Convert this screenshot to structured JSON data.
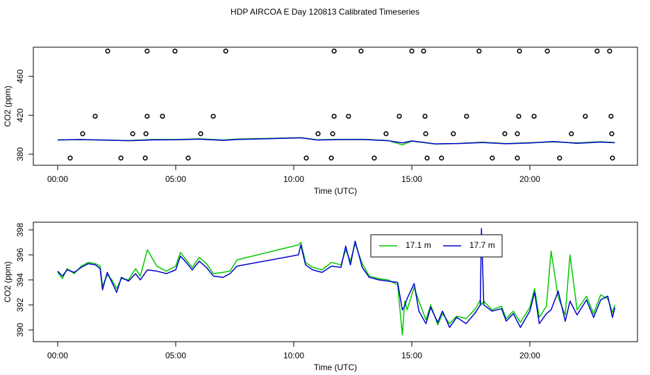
{
  "title": "HDP AIRCOA E  Day 120813  Calibrated Timeseries",
  "chart_data": [
    {
      "type": "line",
      "x_label": "Time (UTC)",
      "y_label": "CO2 (ppm)",
      "xlim": [
        -1.03,
        24.56
      ],
      "ylim": [
        368.6,
        490
      ],
      "xticks": [
        {
          "value": 0,
          "label": "00:00"
        },
        {
          "value": 5,
          "label": "05:00"
        },
        {
          "value": 10,
          "label": "10:00"
        },
        {
          "value": 15,
          "label": "15:00"
        },
        {
          "value": 20,
          "label": "20:00"
        }
      ],
      "yticks": [
        380,
        420,
        460
      ],
      "x": [
        0,
        1,
        2,
        3,
        4,
        5,
        6,
        7,
        7.6,
        10.3,
        11,
        12,
        13,
        14,
        14.6,
        15,
        16,
        17,
        18,
        19,
        20,
        21,
        22,
        23,
        23.6
      ],
      "series": [
        {
          "color": "#00c800",
          "values": [
            394.6,
            395.1,
            394.4,
            394.0,
            395.1,
            395.1,
            395.8,
            394.6,
            395.6,
            397.0,
            394.8,
            395.2,
            395.3,
            394.0,
            389.6,
            393.4,
            390.4,
            391.1,
            392.3,
            390.9,
            391.8,
            392.6,
            391.6,
            392.8,
            392.0
          ]
        },
        {
          "color": "#0000cd",
          "values": [
            394.7,
            395.0,
            394.6,
            393.9,
            394.7,
            394.8,
            395.5,
            394.2,
            395.1,
            396.8,
            394.6,
            395.0,
            395.0,
            393.9,
            391.6,
            393.7,
            390.6,
            391.0,
            392.0,
            390.7,
            391.5,
            393.1,
            391.2,
            392.4,
            391.8
          ]
        }
      ],
      "points": {
        "color": "#000000",
        "x": [
          2.12,
          3.79,
          4.97,
          7.12,
          11.71,
          12.85,
          15.0,
          15.5,
          17.85,
          19.56,
          20.74,
          22.85,
          23.38,
          1.59,
          3.79,
          4.44,
          6.59,
          11.71,
          12.32,
          14.47,
          15.56,
          17.32,
          19.53,
          20.18,
          22.35,
          23.44,
          1.06,
          3.18,
          3.74,
          6.06,
          11.03,
          11.65,
          13.91,
          15.59,
          16.76,
          18.94,
          19.47,
          21.76,
          23.47,
          0.53,
          2.68,
          3.71,
          5.53,
          10.53,
          11.59,
          13.41,
          15.65,
          16.26,
          18.41,
          19.47,
          21.26,
          23.5
        ],
        "y": [
          486,
          486,
          486,
          486,
          486,
          486,
          486,
          486,
          486,
          486,
          486,
          486,
          486,
          419,
          419,
          419,
          419,
          419,
          419,
          419,
          419,
          419,
          419,
          419,
          419,
          419,
          401,
          401,
          401,
          401,
          401,
          401,
          401,
          401,
          401,
          401,
          401,
          401,
          401,
          376,
          376,
          376,
          376,
          376,
          376,
          376,
          376,
          376,
          376,
          376,
          376,
          376
        ]
      }
    },
    {
      "type": "line",
      "x_label": "Time (UTC)",
      "y_label": "CO2 (ppm)",
      "xlim": [
        -1.03,
        24.56
      ],
      "ylim": [
        389.06,
        398.61
      ],
      "xticks": [
        {
          "value": 0,
          "label": "00:00"
        },
        {
          "value": 5,
          "label": "05:00"
        },
        {
          "value": 10,
          "label": "10:00"
        },
        {
          "value": 15,
          "label": "15:00"
        },
        {
          "value": 20,
          "label": "20:00"
        }
      ],
      "yticks": [
        390,
        392,
        394,
        396,
        398
      ],
      "legend": "top-right",
      "x": [
        0.0,
        0.2,
        0.4,
        0.7,
        1.0,
        1.3,
        1.6,
        1.8,
        1.9,
        2.1,
        2.3,
        2.5,
        2.7,
        3.0,
        3.3,
        3.5,
        3.8,
        4.2,
        4.6,
        5.0,
        5.2,
        5.4,
        5.7,
        6.0,
        6.3,
        6.6,
        7.0,
        7.3,
        7.6,
        10.2,
        10.3,
        10.5,
        10.8,
        11.2,
        11.6,
        12.0,
        12.2,
        12.4,
        12.6,
        12.9,
        13.2,
        13.6,
        14.0,
        14.4,
        14.6,
        14.7,
        14.8,
        15.1,
        15.3,
        15.6,
        15.8,
        16.1,
        16.3,
        16.6,
        16.9,
        17.3,
        17.7,
        17.9,
        17.95,
        18.05,
        18.4,
        18.8,
        19.0,
        19.3,
        19.6,
        20.0,
        20.2,
        20.4,
        20.7,
        20.9,
        21.2,
        21.5,
        21.7,
        22.0,
        22.4,
        22.7,
        23.0,
        23.3,
        23.5,
        23.6
      ],
      "series": [
        {
          "name": "17.1 m",
          "color": "#00c800",
          "values": [
            394.6,
            394.1,
            394.9,
            394.5,
            395.1,
            395.4,
            395.3,
            395.1,
            393.5,
            394.4,
            394.0,
            393.3,
            394.1,
            394.0,
            394.9,
            394.3,
            396.4,
            395.1,
            394.7,
            395.1,
            396.2,
            395.7,
            395.0,
            395.8,
            395.3,
            394.5,
            394.6,
            394.7,
            395.6,
            396.8,
            397.0,
            395.4,
            395.0,
            394.8,
            395.4,
            395.2,
            396.4,
            395.5,
            396.9,
            395.3,
            394.3,
            394.1,
            394.0,
            393.6,
            389.6,
            392.3,
            391.6,
            393.4,
            392.3,
            390.8,
            392.0,
            390.4,
            391.3,
            390.5,
            391.1,
            390.9,
            391.7,
            392.4,
            392.0,
            392.3,
            391.6,
            391.9,
            390.9,
            391.5,
            390.6,
            391.8,
            393.3,
            391.0,
            391.9,
            396.3,
            392.6,
            391.2,
            396.0,
            391.6,
            392.7,
            391.3,
            392.8,
            392.5,
            391.4,
            392.0
          ]
        },
        {
          "name": "17.7 m",
          "color": "#0000cd",
          "values": [
            394.7,
            394.3,
            394.8,
            394.6,
            395.0,
            395.3,
            395.2,
            394.9,
            393.2,
            394.6,
            393.8,
            393.0,
            394.2,
            393.9,
            394.5,
            394.0,
            394.8,
            394.7,
            394.5,
            394.8,
            395.9,
            395.5,
            394.8,
            395.5,
            395.0,
            394.3,
            394.2,
            394.5,
            395.1,
            396.0,
            396.8,
            395.2,
            394.8,
            394.6,
            395.1,
            395.0,
            396.7,
            395.2,
            397.1,
            395.0,
            394.2,
            394.0,
            393.9,
            393.8,
            391.6,
            391.9,
            392.5,
            393.7,
            391.5,
            390.5,
            391.8,
            390.6,
            391.5,
            390.2,
            391.0,
            390.5,
            391.4,
            392.0,
            398.1,
            392.0,
            391.5,
            391.7,
            390.7,
            391.3,
            390.2,
            391.5,
            393.0,
            390.5,
            391.3,
            391.6,
            393.1,
            390.7,
            392.3,
            391.2,
            392.4,
            391.0,
            392.4,
            392.7,
            391.0,
            391.8
          ]
        }
      ]
    }
  ]
}
